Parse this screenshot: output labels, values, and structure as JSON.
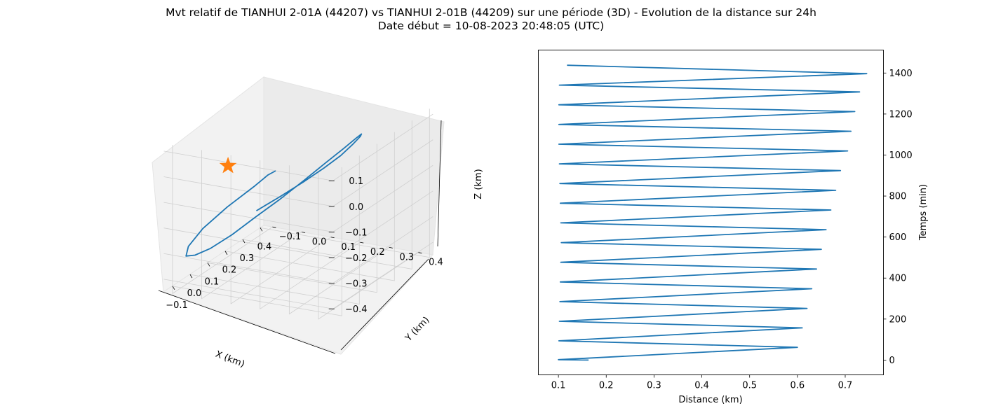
{
  "figure": {
    "title_line1": "Mvt relatif de TIANHUI 2-01A (44207) vs TIANHUI 2-01B (44209) sur une période (3D) - Evolution de la distance sur 24h",
    "title_line2": "Date début = 10-08-2023 20:48:05 (UTC)"
  },
  "colors": {
    "series": "#1f77b4",
    "marker": "#ff7f0e",
    "pane": "#f2f2f2",
    "grid": "#cfcfcf"
  },
  "chart_data": [
    {
      "type": "line3d",
      "xlabel": "X (km)",
      "ylabel": "Y (km)",
      "zlabel": "Z (km)",
      "x_ticks": [
        "−0.1",
        "0.0",
        "0.1",
        "0.2",
        "0.3",
        "0.4"
      ],
      "y_ticks": [
        "−0.1",
        "0.0",
        "0.1",
        "0.2",
        "0.3",
        "0.4"
      ],
      "z_ticks": [
        "0.1",
        "0.0",
        "−0.1",
        "−0.2",
        "−0.3",
        "−0.4"
      ],
      "xlim": [
        -0.15,
        0.42
      ],
      "ylim": [
        -0.13,
        0.45
      ],
      "zlim": [
        -0.45,
        0.13
      ],
      "grid": true,
      "marker": {
        "shape": "star",
        "point": [
          0.0,
          0.0,
          0.0
        ]
      },
      "trajectory": [
        [
          0.052,
          0.066,
          -0.186
        ],
        [
          0.078,
          0.131,
          -0.13
        ],
        [
          0.112,
          0.191,
          -0.076
        ],
        [
          0.152,
          0.238,
          -0.03
        ],
        [
          0.199,
          0.267,
          0.003
        ],
        [
          0.242,
          0.283,
          0.031
        ],
        [
          0.284,
          0.283,
          0.042
        ],
        [
          0.315,
          0.268,
          0.034
        ],
        [
          0.334,
          0.238,
          0.003
        ],
        [
          0.335,
          0.195,
          -0.046
        ],
        [
          0.318,
          0.145,
          -0.103
        ],
        [
          0.284,
          0.091,
          -0.167
        ],
        [
          0.235,
          0.037,
          -0.23
        ],
        [
          0.176,
          -0.013,
          -0.284
        ],
        [
          0.114,
          -0.055,
          -0.332
        ],
        [
          0.052,
          -0.091,
          -0.364
        ],
        [
          -0.002,
          -0.112,
          -0.37
        ],
        [
          -0.043,
          -0.118,
          -0.356
        ],
        [
          -0.063,
          -0.098,
          -0.305
        ],
        [
          -0.054,
          -0.054,
          -0.231
        ],
        [
          -0.021,
          0.01,
          -0.149
        ],
        [
          0.022,
          0.08,
          -0.071
        ],
        [
          0.048,
          0.108,
          -0.036
        ],
        [
          0.077,
          0.117,
          -0.031
        ]
      ]
    },
    {
      "type": "line",
      "xlabel": "Distance (km)",
      "ylabel": "Temps (min)",
      "x_ticks": [
        "0.1",
        "0.2",
        "0.3",
        "0.4",
        "0.5",
        "0.6",
        "0.7"
      ],
      "y_ticks": [
        "0",
        "200",
        "400",
        "600",
        "800",
        "1000",
        "1200",
        "1400"
      ],
      "xlim": [
        0.058,
        0.78
      ],
      "ylim": [
        -72,
        1512
      ],
      "y_axis_side": "right",
      "grid": false,
      "series": [
        {
          "points": [
            [
              0.163,
              0
            ],
            [
              0.1,
              2
            ],
            [
              0.6,
              62
            ],
            [
              0.101,
              94
            ],
            [
              0.61,
              157
            ],
            [
              0.102,
              189
            ],
            [
              0.62,
              252
            ],
            [
              0.103,
              285
            ],
            [
              0.63,
              348
            ],
            [
              0.104,
              381
            ],
            [
              0.64,
              444
            ],
            [
              0.105,
              477
            ],
            [
              0.65,
              540
            ],
            [
              0.106,
              573
            ],
            [
              0.66,
              636
            ],
            [
              0.105,
              669
            ],
            [
              0.67,
              732
            ],
            [
              0.104,
              765
            ],
            [
              0.68,
              828
            ],
            [
              0.103,
              861
            ],
            [
              0.69,
              924
            ],
            [
              0.102,
              957
            ],
            [
              0.705,
              1020
            ],
            [
              0.101,
              1053
            ],
            [
              0.712,
              1116
            ],
            [
              0.101,
              1149
            ],
            [
              0.72,
              1212
            ],
            [
              0.101,
              1245
            ],
            [
              0.73,
              1308
            ],
            [
              0.102,
              1341
            ],
            [
              0.745,
              1397
            ],
            [
              0.118,
              1438
            ]
          ]
        }
      ]
    }
  ]
}
